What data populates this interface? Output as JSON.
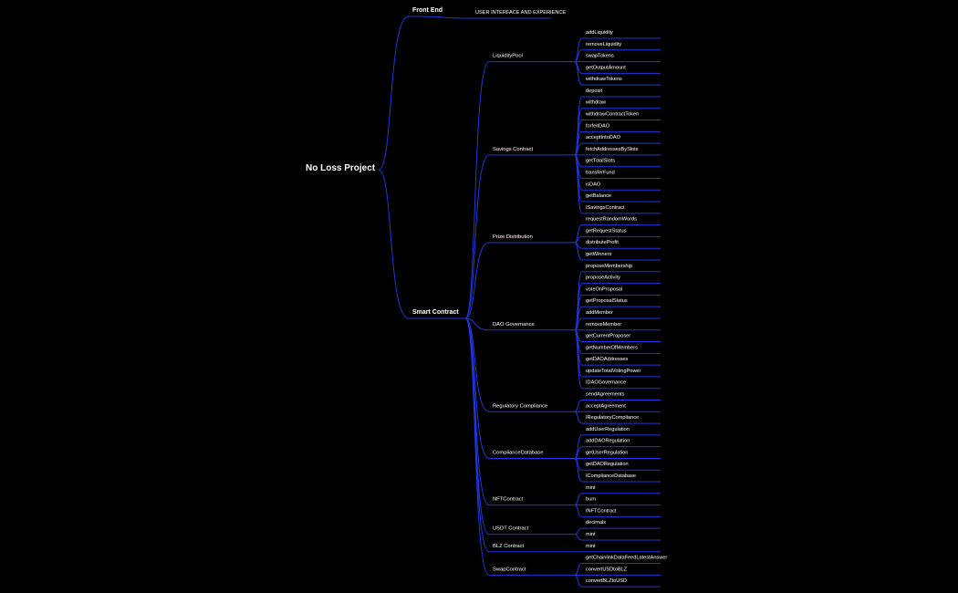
{
  "root": "No Loss Project",
  "line_color": "#1f36e0",
  "branches": [
    {
      "label": "Front End",
      "modules": [],
      "leaf": "USER INTERFACE AND EXPERIENCE"
    },
    {
      "label": "Smart Contract",
      "modules": [
        {
          "label": "LiquidityPool",
          "items": [
            "addLiquidity",
            "removeLiquidity",
            "swapTokens",
            "getOutputAmount",
            "withdrawTokens"
          ]
        },
        {
          "label": "Savings Contract",
          "items": [
            "deposit",
            "withdraw",
            "withdrawContractToken",
            "forfeitDAO",
            "acceptIntoDAO",
            "fetchAddressesBySlots",
            "getTotalSlots",
            "transferFund",
            "isDAO",
            "getBalance",
            "ISavingsContract"
          ]
        },
        {
          "label": "Prize Distribution",
          "items": [
            "requestRandomWords",
            "getRequestStatus",
            "distributeProfit",
            "getWinners"
          ]
        },
        {
          "label": "DAO Governance",
          "items": [
            "proposeMembership",
            "proposeActivity",
            "voteOnProposal",
            "getProposalStatus",
            "addMember",
            "removeMember",
            "getCurrentProposer",
            "getNumberOfMembers",
            "getDAOAddresses",
            "updateTotalVotingPower",
            "IDAOGovernance"
          ]
        },
        {
          "label": "Regulatory Compliance",
          "items": [
            "sendAgreements",
            "acceptAgreement",
            "IRegulatoryCompliance"
          ]
        },
        {
          "label": "ComplianceDatabase",
          "items": [
            "addUserRegulation",
            "addDAORegulation",
            "getUserRegulation",
            "getDAORegulation",
            "IComplianceDatabase"
          ]
        },
        {
          "label": "NFTContract",
          "items": [
            "mint",
            "burn",
            "INFTContract"
          ]
        },
        {
          "label": "USDT Contract",
          "items": [
            "decimals",
            "mint"
          ]
        },
        {
          "label": "BLZ Contract",
          "items": [
            "mint"
          ]
        },
        {
          "label": "SwapContract",
          "items": [
            "getChainlinkDataFeedLatestAnswer",
            "convertUSDtoBLZ",
            "convertBLZtoUSD"
          ]
        }
      ]
    }
  ]
}
